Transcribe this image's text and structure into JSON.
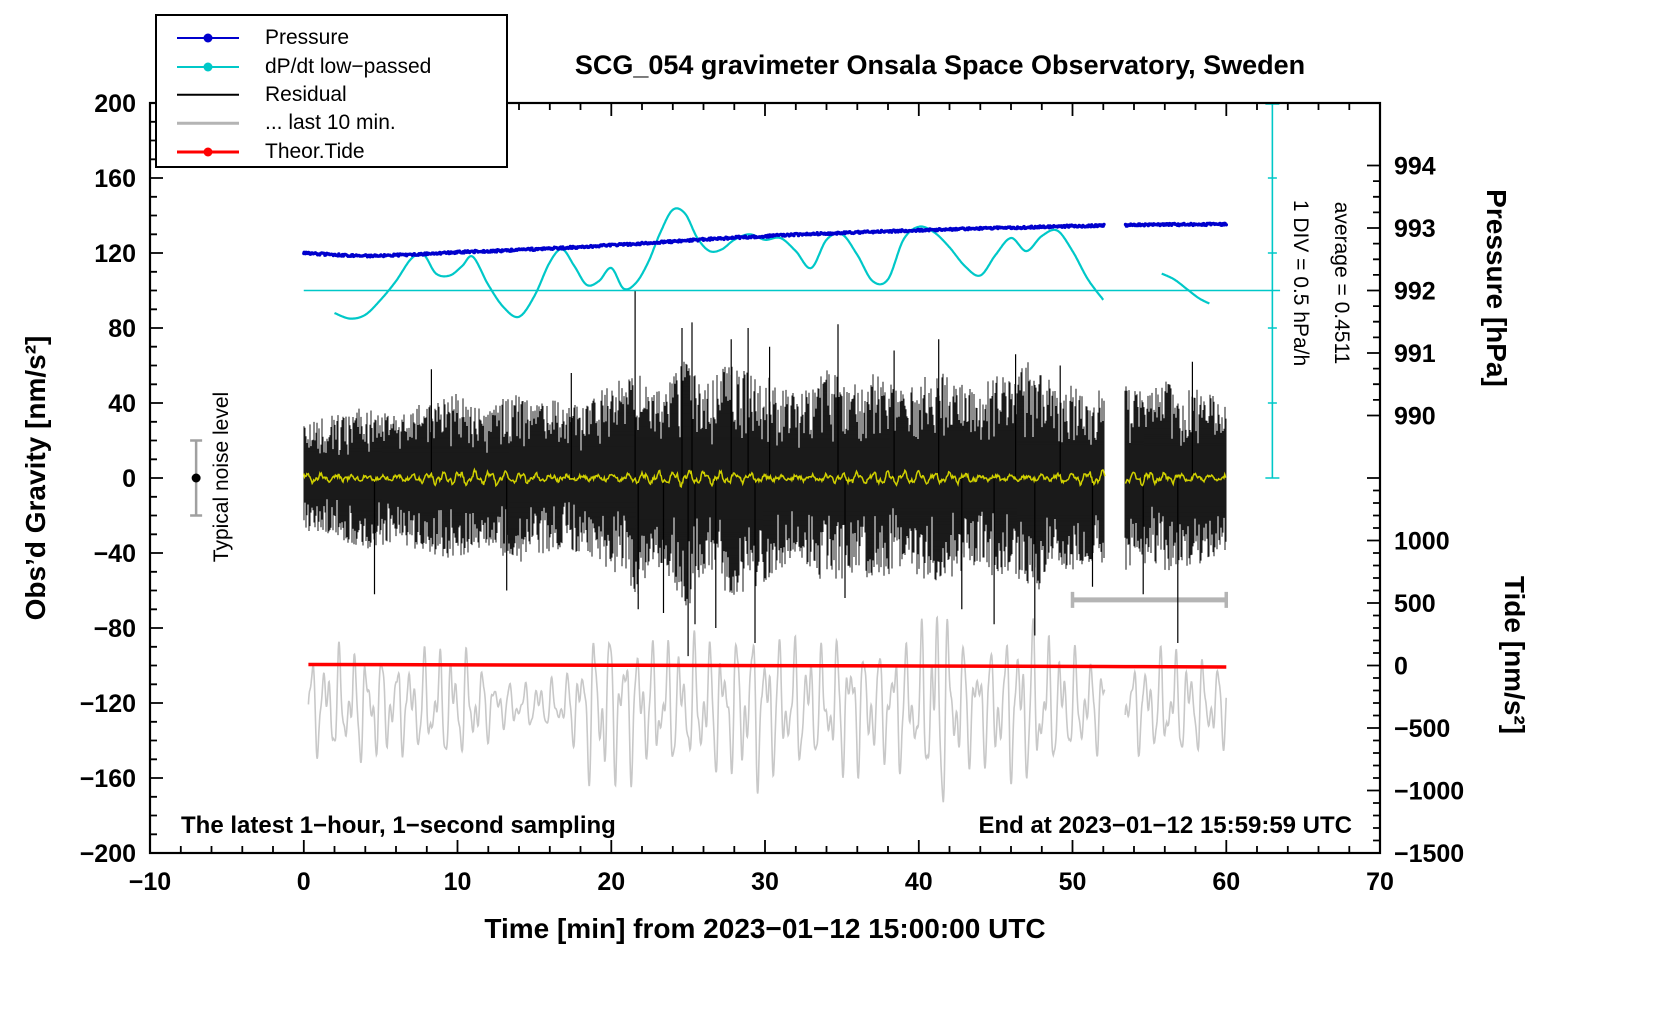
{
  "title": "SCG_054 gravimeter Onsala Space Observatory, Sweden",
  "annotations": {
    "div_scale": "1 DIV = 0.5 hPa/h",
    "average": "average = 0.4511",
    "noise_label": "Typical noise level",
    "sampling_note": "The latest 1−hour, 1−second sampling",
    "end_note": "End at 2023−01−12 15:59:59 UTC"
  },
  "legend": [
    {
      "label": "Pressure",
      "color": "#0000cd",
      "dot": true,
      "lw": 2
    },
    {
      "label": "dP/dt low−passed",
      "color": "#00c8c8",
      "dot": true,
      "lw": 2
    },
    {
      "label": "Residual",
      "color": "#000000",
      "dot": false,
      "lw": 2.5
    },
    {
      "label": "... last 10 min.",
      "color": "#b4b4b4",
      "dot": false,
      "lw": 2.5
    },
    {
      "label": "Theor.Tide",
      "color": "#ff0000",
      "dot": true,
      "lw": 3
    }
  ],
  "axes": {
    "x": {
      "label": "Time [min] from 2023−01−12 15:00:00 UTC",
      "min": -10,
      "max": 70,
      "major": 10,
      "minor": 2
    },
    "gravity": {
      "label": "Obs’d Gravity [nm/s²]",
      "min": -200,
      "max": 200,
      "major": 40,
      "minor": 10
    },
    "pressure": {
      "label": "Pressure [hPa]",
      "ticks": [
        994,
        993,
        992,
        991,
        990
      ],
      "gravity_at_992": 100,
      "gravity_per_hpa": 33.3333
    },
    "tide": {
      "label": "Tide [nm/s²]",
      "ticks": [
        1000,
        500,
        0,
        -500,
        -1000,
        -1500
      ],
      "gravity_at_0": -100,
      "gravity_per_unit": 0.0666667
    }
  },
  "chart_data": {
    "type": "line",
    "x_unit": "min",
    "x_range": [
      0,
      60
    ],
    "gap": [
      52.1,
      53.4
    ],
    "colors": {
      "pressure": "#0000cd",
      "dpdt": "#00c8c8",
      "residual": "#000000",
      "residual_smoothed": "#d0d000",
      "tide_gray": "#c8c8c8",
      "theor_tide": "#ff0000",
      "noise_bar": "#a0a0a0",
      "last10_bar": "#b4b4b4"
    },
    "pressure": {
      "unit": "hPa",
      "points": [
        [
          0,
          992.6
        ],
        [
          1.5,
          992.58
        ],
        [
          3,
          992.562
        ],
        [
          4.5,
          992.556
        ],
        [
          6,
          992.565
        ],
        [
          8,
          992.588
        ],
        [
          10,
          992.612
        ],
        [
          12,
          992.63
        ],
        [
          14,
          992.65
        ],
        [
          16,
          992.672
        ],
        [
          18,
          992.696
        ],
        [
          20,
          992.724
        ],
        [
          22,
          992.754
        ],
        [
          24,
          992.786
        ],
        [
          26,
          992.816
        ],
        [
          28,
          992.845
        ],
        [
          30,
          992.87
        ],
        [
          32,
          992.893
        ],
        [
          34,
          992.913
        ],
        [
          36,
          992.932
        ],
        [
          38,
          992.948
        ],
        [
          40,
          992.963
        ],
        [
          42,
          992.978
        ],
        [
          44,
          992.992
        ],
        [
          46,
          993.005
        ],
        [
          48,
          993.018
        ],
        [
          50,
          993.03
        ],
        [
          52.05,
          993.04
        ],
        [
          53.45,
          993.045
        ],
        [
          55,
          993.05
        ],
        [
          57,
          993.055
        ],
        [
          59,
          993.06
        ],
        [
          60,
          993.06
        ]
      ]
    },
    "dpdt": {
      "unit": "hPa/h",
      "average": 0.4511,
      "div_hpah": 0.5,
      "avg_line_extent": [
        0,
        63.5
      ],
      "scale_bar_x": 63.0,
      "points": [
        [
          2,
          0.301
        ],
        [
          3,
          0.264
        ],
        [
          4,
          0.289
        ],
        [
          5,
          0.389
        ],
        [
          6,
          0.514
        ],
        [
          7,
          0.664
        ],
        [
          7.8,
          0.689
        ],
        [
          8.6,
          0.564
        ],
        [
          9.5,
          0.551
        ],
        [
          10.3,
          0.614
        ],
        [
          11,
          0.676
        ],
        [
          12,
          0.489
        ],
        [
          13,
          0.339
        ],
        [
          14,
          0.276
        ],
        [
          15,
          0.414
        ],
        [
          16,
          0.639
        ],
        [
          16.8,
          0.726
        ],
        [
          17.6,
          0.614
        ],
        [
          18.4,
          0.489
        ],
        [
          19.2,
          0.514
        ],
        [
          20,
          0.601
        ],
        [
          20.8,
          0.464
        ],
        [
          21.6,
          0.501
        ],
        [
          22.4,
          0.639
        ],
        [
          23.2,
          0.839
        ],
        [
          24,
          0.989
        ],
        [
          24.8,
          0.964
        ],
        [
          25.6,
          0.801
        ],
        [
          26.4,
          0.714
        ],
        [
          27.2,
          0.726
        ],
        [
          28,
          0.789
        ],
        [
          29,
          0.826
        ],
        [
          30,
          0.789
        ],
        [
          31,
          0.801
        ],
        [
          32,
          0.714
        ],
        [
          33,
          0.601
        ],
        [
          34,
          0.789
        ],
        [
          35,
          0.826
        ],
        [
          36,
          0.689
        ],
        [
          37,
          0.514
        ],
        [
          38,
          0.526
        ],
        [
          39,
          0.789
        ],
        [
          40,
          0.876
        ],
        [
          41,
          0.839
        ],
        [
          42,
          0.739
        ],
        [
          43,
          0.614
        ],
        [
          44,
          0.551
        ],
        [
          45,
          0.689
        ],
        [
          46,
          0.801
        ],
        [
          47,
          0.714
        ],
        [
          48,
          0.814
        ],
        [
          49,
          0.851
        ],
        [
          50,
          0.714
        ],
        [
          51,
          0.526
        ],
        [
          52,
          0.389
        ]
      ],
      "points2": [
        [
          55.8,
          0.564
        ],
        [
          56.6,
          0.526
        ],
        [
          57.4,
          0.464
        ],
        [
          58.2,
          0.401
        ],
        [
          58.9,
          0.364
        ]
      ]
    },
    "residual": {
      "unit": "nm/s²",
      "envelope": [
        [
          0,
          26
        ],
        [
          2,
          30
        ],
        [
          4,
          34
        ],
        [
          6,
          30
        ],
        [
          8,
          36
        ],
        [
          10,
          40
        ],
        [
          11,
          34
        ],
        [
          12,
          32
        ],
        [
          13,
          38
        ],
        [
          14,
          40
        ],
        [
          15,
          36
        ],
        [
          16,
          38
        ],
        [
          17,
          34
        ],
        [
          18,
          36
        ],
        [
          19,
          40
        ],
        [
          20,
          44
        ],
        [
          21,
          48
        ],
        [
          21.7,
          58
        ],
        [
          22.4,
          44
        ],
        [
          23,
          42
        ],
        [
          24,
          50
        ],
        [
          25,
          62
        ],
        [
          25.6,
          48
        ],
        [
          26.4,
          44
        ],
        [
          27,
          52
        ],
        [
          28,
          56
        ],
        [
          29,
          52
        ],
        [
          30,
          50
        ],
        [
          31,
          44
        ],
        [
          32,
          42
        ],
        [
          33,
          42
        ],
        [
          34,
          52
        ],
        [
          35,
          48
        ],
        [
          36,
          44
        ],
        [
          37,
          50
        ],
        [
          38,
          46
        ],
        [
          39,
          42
        ],
        [
          40,
          46
        ],
        [
          41,
          52
        ],
        [
          42,
          48
        ],
        [
          43,
          44
        ],
        [
          44,
          42
        ],
        [
          45,
          50
        ],
        [
          46,
          46
        ],
        [
          47,
          56
        ],
        [
          48,
          52
        ],
        [
          49,
          42
        ],
        [
          50,
          44
        ],
        [
          51,
          40
        ],
        [
          52.1,
          42
        ],
        [
          53.4,
          44
        ],
        [
          54,
          42
        ],
        [
          55,
          40
        ],
        [
          56,
          46
        ],
        [
          57,
          44
        ],
        [
          58,
          42
        ],
        [
          59,
          40
        ],
        [
          60,
          38
        ]
      ],
      "spikes": [
        [
          4.6,
          -62
        ],
        [
          8.3,
          58
        ],
        [
          13.2,
          -60
        ],
        [
          17.4,
          56
        ],
        [
          21.55,
          100
        ],
        [
          21.75,
          -70
        ],
        [
          23.4,
          -72
        ],
        [
          24.6,
          80
        ],
        [
          25.0,
          -95
        ],
        [
          25.25,
          83
        ],
        [
          25.45,
          -78
        ],
        [
          26.8,
          -80
        ],
        [
          27.8,
          74
        ],
        [
          28.9,
          80
        ],
        [
          29.35,
          -88
        ],
        [
          30.3,
          70
        ],
        [
          34.75,
          82
        ],
        [
          35.2,
          -64
        ],
        [
          38.4,
          68
        ],
        [
          41.3,
          74
        ],
        [
          42.8,
          -70
        ],
        [
          44.9,
          -78
        ],
        [
          46.3,
          66
        ],
        [
          47.55,
          -84
        ],
        [
          49.2,
          60
        ],
        [
          51.3,
          -58
        ],
        [
          54.6,
          -62
        ],
        [
          56.85,
          -88
        ],
        [
          57.8,
          62
        ]
      ]
    },
    "residual_smoothed": {
      "unit": "nm/s²",
      "amplitude": 3.5
    },
    "theor_tide": {
      "unit": "nm/s² (tide axis)",
      "points": [
        [
          0.3,
          8
        ],
        [
          20,
          2
        ],
        [
          40,
          -4
        ],
        [
          52.05,
          -8
        ],
        [
          53.45,
          -9
        ],
        [
          60,
          -12
        ]
      ]
    },
    "tide_gray": {
      "unit": "nm/s² (tide axis)",
      "center": -320,
      "start": 0.3,
      "envelope": [
        [
          0.3,
          420
        ],
        [
          2,
          500
        ],
        [
          3.5,
          520
        ],
        [
          5,
          470
        ],
        [
          6.5,
          420
        ],
        [
          8,
          480
        ],
        [
          9.5,
          520
        ],
        [
          11,
          470
        ],
        [
          12,
          300
        ],
        [
          13,
          220
        ],
        [
          14,
          200
        ],
        [
          15,
          210
        ],
        [
          16,
          230
        ],
        [
          17,
          260
        ],
        [
          17.8,
          420
        ],
        [
          18.5,
          650
        ],
        [
          19.5,
          760
        ],
        [
          20.5,
          700
        ],
        [
          21.5,
          640
        ],
        [
          22.5,
          540
        ],
        [
          23.5,
          600
        ],
        [
          24.5,
          560
        ],
        [
          25.5,
          600
        ],
        [
          26.5,
          640
        ],
        [
          27.5,
          560
        ],
        [
          28.5,
          700
        ],
        [
          29.5,
          740
        ],
        [
          30.5,
          640
        ],
        [
          31.5,
          600
        ],
        [
          32.5,
          560
        ],
        [
          33.5,
          520
        ],
        [
          34.5,
          600
        ],
        [
          35.5,
          640
        ],
        [
          36.5,
          560
        ],
        [
          37.5,
          520
        ],
        [
          38.5,
          600
        ],
        [
          39.5,
          560
        ],
        [
          40.3,
          700
        ],
        [
          40.9,
          1000
        ],
        [
          41.3,
          1120
        ],
        [
          41.8,
          860
        ],
        [
          42.5,
          620
        ],
        [
          43.5,
          560
        ],
        [
          44.5,
          520
        ],
        [
          45.5,
          620
        ],
        [
          46.5,
          700
        ],
        [
          47.3,
          760
        ],
        [
          48,
          700
        ],
        [
          48.8,
          560
        ],
        [
          49.5,
          500
        ],
        [
          50.5,
          460
        ],
        [
          51.5,
          420
        ],
        [
          52.1,
          400
        ],
        [
          53.4,
          380
        ],
        [
          54.5,
          420
        ],
        [
          55.5,
          460
        ],
        [
          56.5,
          500
        ],
        [
          57.5,
          460
        ],
        [
          58.5,
          420
        ],
        [
          59.5,
          380
        ],
        [
          60,
          360
        ]
      ]
    },
    "noise_marker": {
      "t": -7,
      "value": 0,
      "error": 20
    },
    "last10_bar": {
      "t1": 50,
      "t2": 60,
      "gravity": -65
    }
  }
}
